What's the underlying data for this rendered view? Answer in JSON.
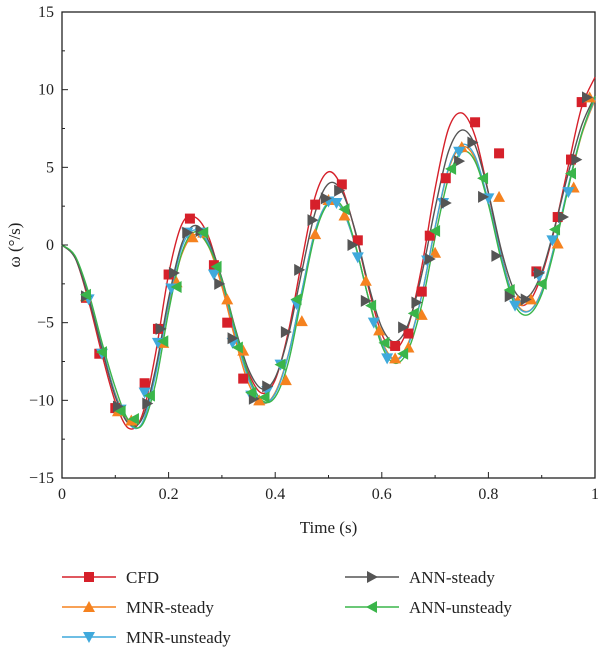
{
  "chart_data": {
    "type": "line",
    "xlabel": "Time (s)",
    "ylabel": "ω (°/s)",
    "xlim": [
      0,
      1
    ],
    "ylim": [
      -15,
      15
    ],
    "xticks": [
      0,
      0.2,
      0.4,
      0.6,
      0.8,
      1
    ],
    "xtick_labels": [
      "0",
      "0.2",
      "0.4",
      "0.6",
      "0.8",
      "1"
    ],
    "yticks": [
      -15,
      -10,
      -5,
      0,
      5,
      10,
      15
    ],
    "ytick_labels": [
      "−15",
      "−10",
      "−5",
      "0",
      "5",
      "10",
      "15"
    ],
    "grid": false,
    "legend_placement": "below",
    "series": [
      {
        "name": "CFD",
        "color": "#d6202a",
        "marker": "square",
        "x": [
          0,
          0.025,
          0.05,
          0.075,
          0.1,
          0.125,
          0.15,
          0.175,
          0.2,
          0.225,
          0.25,
          0.275,
          0.3,
          0.325,
          0.35,
          0.375,
          0.4,
          0.425,
          0.45,
          0.475,
          0.5,
          0.525,
          0.55,
          0.575,
          0.6,
          0.625,
          0.65,
          0.675,
          0.7,
          0.725,
          0.75,
          0.775,
          0.8,
          0.825,
          0.85,
          0.875,
          0.9,
          0.925,
          0.95,
          0.975,
          1.0
        ],
        "values": [
          0,
          -0.85,
          -3.62,
          -7.04,
          -10.1,
          -11.8,
          -11.0,
          -7.1,
          -1.89,
          1.35,
          1.79,
          0.53,
          -2.43,
          -5.81,
          -8.25,
          -9.54,
          -8.68,
          -5.54,
          -1.01,
          3.12,
          4.71,
          3.71,
          0.86,
          -2.74,
          -5.74,
          -6.72,
          -5.2,
          -1.39,
          3.62,
          7.47,
          8.5,
          7.01,
          3.36,
          -0.73,
          -3.53,
          -3.7,
          -1.94,
          1.17,
          5.11,
          8.87,
          10.8
        ],
        "marker_x": [
          0.045,
          0.07,
          0.1,
          0.155,
          0.18,
          0.2,
          0.24,
          0.285,
          0.31,
          0.34,
          0.475,
          0.525,
          0.555,
          0.625,
          0.65,
          0.675,
          0.69,
          0.72,
          0.775,
          0.82,
          0.89,
          0.93,
          0.955,
          0.975
        ],
        "marker_values": [
          -3.4,
          -7.0,
          -10.5,
          -8.9,
          -5.4,
          -1.9,
          1.7,
          -1.3,
          -5.0,
          -8.6,
          2.6,
          3.9,
          0.3,
          -6.5,
          -5.7,
          -3.0,
          0.6,
          4.3,
          7.9,
          5.9,
          -1.7,
          1.8,
          5.5,
          9.2
        ]
      },
      {
        "name": "MNR-steady",
        "color": "#f5821f",
        "marker": "triangle-up",
        "x": [
          0,
          0.025,
          0.05,
          0.075,
          0.1,
          0.125,
          0.15,
          0.175,
          0.2,
          0.225,
          0.25,
          0.275,
          0.3,
          0.325,
          0.35,
          0.375,
          0.4,
          0.425,
          0.45,
          0.475,
          0.5,
          0.525,
          0.55,
          0.575,
          0.6,
          0.625,
          0.65,
          0.675,
          0.7,
          0.725,
          0.75,
          0.775,
          0.8,
          0.825,
          0.85,
          0.875,
          0.9,
          0.925,
          0.95,
          0.975,
          1.0
        ],
        "values": [
          0,
          -0.82,
          -3.38,
          -6.6,
          -9.57,
          -11.4,
          -11.2,
          -8.26,
          -3.88,
          -0.58,
          0.68,
          -0.1,
          -2.68,
          -6.08,
          -8.92,
          -10.2,
          -9.49,
          -7.0,
          -2.99,
          0.94,
          2.75,
          2.33,
          0.0,
          -3.4,
          -6.18,
          -7.36,
          -6.29,
          -3.21,
          1.1,
          4.84,
          6.32,
          5.55,
          2.71,
          -0.84,
          -3.58,
          -4.26,
          -2.95,
          0.12,
          3.73,
          7.09,
          9.34
        ],
        "marker_x": [
          0.045,
          0.105,
          0.13,
          0.19,
          0.215,
          0.245,
          0.265,
          0.31,
          0.34,
          0.37,
          0.42,
          0.45,
          0.475,
          0.5,
          0.53,
          0.57,
          0.595,
          0.625,
          0.65,
          0.675,
          0.7,
          0.75,
          0.82,
          0.855,
          0.88,
          0.93,
          0.96,
          0.99
        ],
        "marker_values": [
          -3.3,
          -10.7,
          -11.3,
          -6.3,
          -2.4,
          0.5,
          0.8,
          -3.5,
          -6.8,
          -10.0,
          -8.7,
          -4.9,
          0.7,
          2.9,
          1.9,
          -2.3,
          -5.5,
          -7.3,
          -6.6,
          -4.5,
          -0.5,
          6.3,
          3.1,
          -3.6,
          -3.5,
          0.1,
          3.7,
          9.5
        ]
      },
      {
        "name": "MNR-unsteady",
        "color": "#3fa9dc",
        "marker": "triangle-down",
        "x": [
          0,
          0.025,
          0.05,
          0.075,
          0.1,
          0.125,
          0.15,
          0.175,
          0.2,
          0.225,
          0.25,
          0.275,
          0.3,
          0.325,
          0.35,
          0.375,
          0.4,
          0.425,
          0.45,
          0.475,
          0.5,
          0.525,
          0.55,
          0.575,
          0.6,
          0.625,
          0.65,
          0.675,
          0.7,
          0.725,
          0.75,
          0.775,
          0.8,
          0.825,
          0.85,
          0.875,
          0.9,
          0.925,
          0.95,
          0.975,
          1.0
        ],
        "values": [
          0,
          -0.82,
          -3.39,
          -6.57,
          -9.62,
          -11.5,
          -11.5,
          -8.43,
          -3.73,
          -0.12,
          0.98,
          0.06,
          -2.31,
          -5.7,
          -8.63,
          -10.1,
          -9.57,
          -7.05,
          -2.97,
          0.93,
          2.76,
          2.33,
          0.0,
          -3.43,
          -6.29,
          -7.42,
          -6.39,
          -3.23,
          1.15,
          4.93,
          6.46,
          5.71,
          2.79,
          -0.84,
          -3.66,
          -4.28,
          -3.0,
          0.12,
          3.84,
          7.17,
          9.44
        ],
        "marker_x": [
          0.05,
          0.075,
          0.11,
          0.155,
          0.18,
          0.205,
          0.235,
          0.26,
          0.285,
          0.32,
          0.355,
          0.385,
          0.41,
          0.44,
          0.5,
          0.515,
          0.555,
          0.585,
          0.61,
          0.685,
          0.715,
          0.745,
          0.8,
          0.85,
          0.895,
          0.92,
          0.95
        ],
        "marker_values": [
          -3.5,
          -7.0,
          -10.6,
          -9.5,
          -6.3,
          -2.8,
          0.8,
          0.8,
          -1.9,
          -6.3,
          -9.7,
          -9.4,
          -7.7,
          -3.8,
          2.8,
          2.7,
          -0.8,
          -5.0,
          -7.3,
          -1.0,
          2.7,
          6.0,
          3.0,
          -3.9,
          -2.0,
          0.3,
          3.4
        ]
      },
      {
        "name": "ANN-steady",
        "color": "#555555",
        "marker": "triangle-right",
        "x": [
          0,
          0.025,
          0.05,
          0.075,
          0.1,
          0.125,
          0.15,
          0.175,
          0.2,
          0.225,
          0.25,
          0.275,
          0.3,
          0.325,
          0.35,
          0.375,
          0.4,
          0.425,
          0.45,
          0.475,
          0.5,
          0.525,
          0.55,
          0.575,
          0.6,
          0.625,
          0.65,
          0.675,
          0.7,
          0.725,
          0.75,
          0.775,
          0.8,
          0.825,
          0.85,
          0.875,
          0.9,
          0.925,
          0.95,
          0.975,
          1.0
        ],
        "values": [
          0,
          -0.86,
          -3.44,
          -6.69,
          -9.76,
          -11.5,
          -11.2,
          -8.07,
          -3.44,
          0.11,
          1.26,
          0.26,
          -2.15,
          -5.35,
          -8.02,
          -9.26,
          -8.54,
          -5.79,
          -1.7,
          2.1,
          3.95,
          3.45,
          0.93,
          -2.55,
          -5.31,
          -6.24,
          -5.06,
          -1.88,
          2.37,
          6.01,
          7.4,
          6.42,
          3.36,
          -0.42,
          -3.02,
          -3.31,
          -1.76,
          1.24,
          4.64,
          7.7,
          9.61
        ],
        "marker_x": [
          0.045,
          0.105,
          0.16,
          0.185,
          0.21,
          0.235,
          0.26,
          0.295,
          0.32,
          0.36,
          0.385,
          0.42,
          0.445,
          0.47,
          0.495,
          0.52,
          0.545,
          0.57,
          0.64,
          0.665,
          0.69,
          0.72,
          0.745,
          0.77,
          0.79,
          0.815,
          0.84,
          0.87,
          0.895,
          0.94,
          0.965,
          0.985
        ],
        "marker_values": [
          -3.3,
          -10.4,
          -10.2,
          -5.4,
          -1.8,
          0.8,
          0.9,
          -2.5,
          -6.0,
          -9.9,
          -9.1,
          -5.6,
          -1.6,
          1.6,
          3.0,
          3.5,
          0.0,
          -3.6,
          -5.3,
          -3.7,
          -0.9,
          2.7,
          5.4,
          6.6,
          3.1,
          -0.7,
          -3.3,
          -3.5,
          -1.8,
          1.8,
          5.5,
          9.5
        ]
      },
      {
        "name": "ANN-unsteady",
        "color": "#3ab54a",
        "marker": "triangle-left",
        "x": [
          0,
          0.025,
          0.05,
          0.075,
          0.1,
          0.125,
          0.15,
          0.175,
          0.2,
          0.225,
          0.25,
          0.275,
          0.3,
          0.325,
          0.35,
          0.375,
          0.4,
          0.425,
          0.45,
          0.475,
          0.5,
          0.525,
          0.55,
          0.575,
          0.6,
          0.625,
          0.65,
          0.675,
          0.7,
          0.725,
          0.75,
          0.775,
          0.8,
          0.825,
          0.85,
          0.875,
          0.9,
          0.925,
          0.95,
          0.975,
          1.0
        ],
        "values": [
          0,
          -0.73,
          -3.07,
          -6.27,
          -9.17,
          -11.3,
          -11.6,
          -9.0,
          -4.3,
          -0.48,
          0.86,
          -0.08,
          -2.25,
          -5.46,
          -8.4,
          -10.0,
          -9.78,
          -7.51,
          -3.32,
          0.71,
          2.69,
          2.51,
          0.08,
          -3.43,
          -6.48,
          -7.62,
          -6.72,
          -3.84,
          0.48,
          4.29,
          5.98,
          5.38,
          2.61,
          -1.09,
          -3.89,
          -4.48,
          -3.18,
          -0.09,
          3.69,
          7.17,
          9.58
        ],
        "marker_x": [
          0.045,
          0.075,
          0.11,
          0.135,
          0.165,
          0.19,
          0.215,
          0.265,
          0.29,
          0.33,
          0.355,
          0.38,
          0.41,
          0.44,
          0.53,
          0.58,
          0.605,
          0.64,
          0.66,
          0.7,
          0.73,
          0.79,
          0.84,
          0.9,
          0.925,
          0.955
        ],
        "marker_values": [
          -3.2,
          -6.9,
          -10.7,
          -11.2,
          -9.7,
          -6.2,
          -2.7,
          0.8,
          -1.4,
          -6.6,
          -9.5,
          -9.8,
          -7.7,
          -3.5,
          2.3,
          -3.9,
          -6.3,
          -7.0,
          -4.4,
          0.9,
          4.9,
          4.3,
          -2.9,
          -2.5,
          1.0,
          4.6
        ]
      }
    ]
  }
}
